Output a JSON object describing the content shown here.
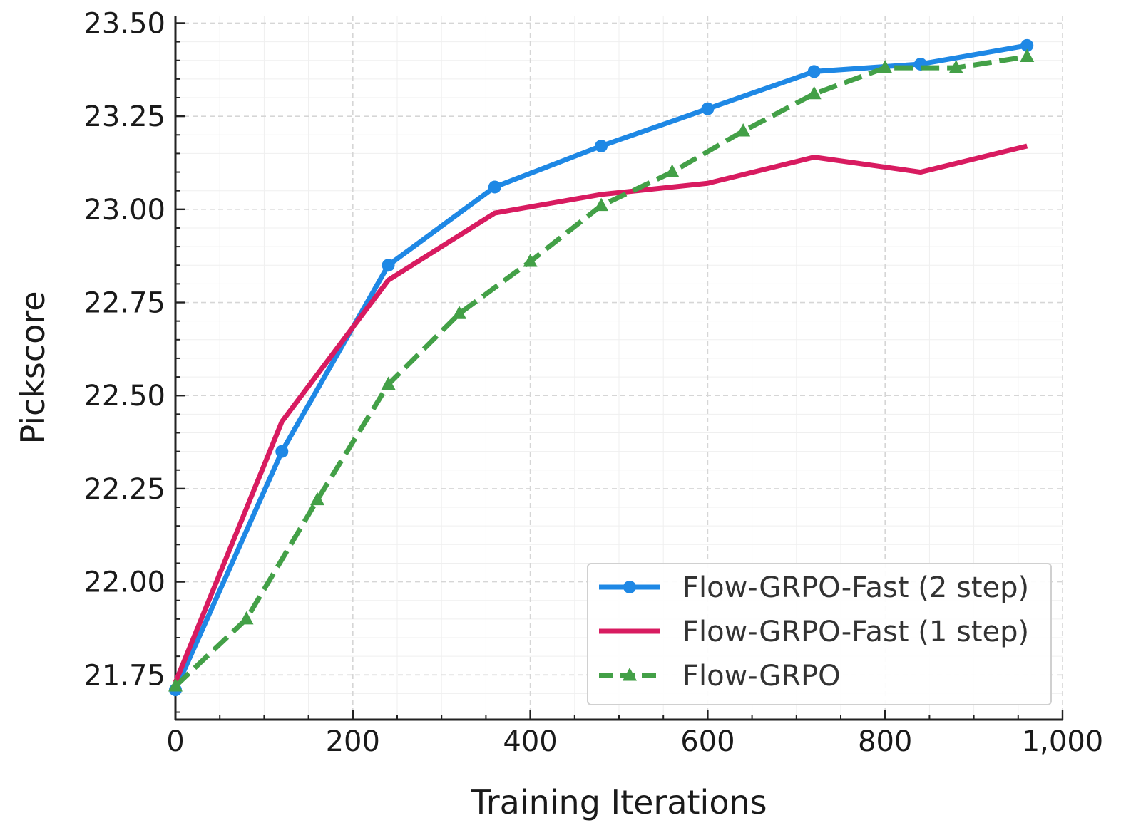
{
  "chart_data": {
    "type": "line",
    "xlabel": "Training Iterations",
    "ylabel": "Pickscore",
    "xlim": [
      0,
      1000
    ],
    "ylim": [
      21.63,
      23.52
    ],
    "xticks": [
      0,
      200,
      400,
      600,
      800,
      1000
    ],
    "xtick_labels": [
      "0",
      "200",
      "400",
      "600",
      "800",
      "1,000"
    ],
    "yticks": [
      21.75,
      22.0,
      22.25,
      22.5,
      22.75,
      23.0,
      23.25,
      23.5
    ],
    "ytick_labels": [
      "21.75",
      "22.00",
      "22.25",
      "22.50",
      "22.75",
      "23.00",
      "23.25",
      "23.50"
    ],
    "grid": true,
    "legend_position": "bottom-right",
    "series": [
      {
        "name": "Flow-GRPO-Fast (2 step)",
        "color": "#1e88e5",
        "marker": "circle",
        "dash": "solid",
        "x": [
          0,
          120,
          240,
          360,
          480,
          600,
          720,
          840,
          960
        ],
        "y": [
          21.71,
          22.35,
          22.85,
          23.06,
          23.17,
          23.27,
          23.37,
          23.39,
          23.44
        ]
      },
      {
        "name": "Flow-GRPO-Fast (1 step)",
        "color": "#d81b60",
        "marker": "none",
        "dash": "solid",
        "x": [
          0,
          120,
          240,
          360,
          480,
          600,
          720,
          840,
          960
        ],
        "y": [
          21.73,
          22.43,
          22.81,
          22.99,
          23.04,
          23.07,
          23.14,
          23.1,
          23.17
        ]
      },
      {
        "name": "Flow-GRPO",
        "color": "#43a047",
        "marker": "triangle",
        "dash": "dashed",
        "x": [
          0,
          80,
          160,
          240,
          320,
          400,
          480,
          560,
          640,
          720,
          800,
          880,
          960
        ],
        "y": [
          21.72,
          21.9,
          22.22,
          22.53,
          22.72,
          22.86,
          23.01,
          23.1,
          23.21,
          23.31,
          23.38,
          23.38,
          23.41
        ]
      }
    ]
  }
}
